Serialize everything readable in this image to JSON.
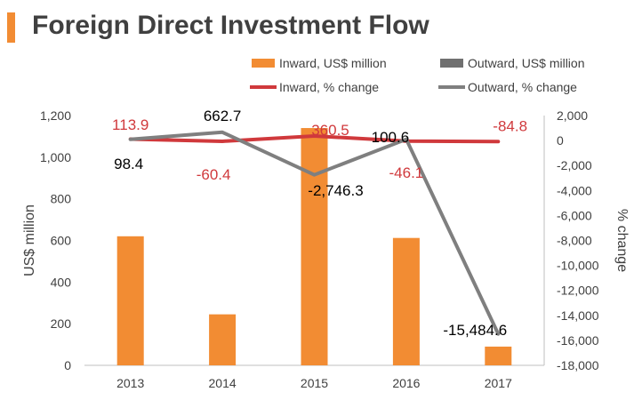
{
  "title": "Foreign Direct Investment Flow",
  "colors": {
    "title_bar": "#F28C33",
    "title_text": "#404040",
    "inward_bar": "#F28C33",
    "outward_bar": "#707070",
    "inward_line": "#D0393C",
    "outward_line": "#7F7F7F",
    "axis_text": "#404040",
    "axis_line": "#BFBFBF"
  },
  "chart_data": {
    "type": "bar",
    "categories": [
      "2013",
      "2014",
      "2015",
      "2016",
      "2017"
    ],
    "series": [
      {
        "name": "Inward, US$ million",
        "type": "bar",
        "axis": "left",
        "values": [
          620,
          245,
          1140,
          612,
          90
        ]
      },
      {
        "name": "Outward, US$ million",
        "type": "bar",
        "axis": "left",
        "values": [
          null,
          null,
          null,
          null,
          null
        ]
      },
      {
        "name": "Inward, % change",
        "type": "line",
        "axis": "right",
        "values": [
          113.9,
          -60.4,
          360.5,
          -46.1,
          -84.8
        ],
        "labels": [
          "113.9",
          "-60.4",
          "360.5",
          "-46.1",
          "-84.8"
        ]
      },
      {
        "name": "Outward, % change",
        "type": "line",
        "axis": "right",
        "values": [
          98.4,
          662.7,
          -2746.3,
          100.6,
          -15484.6
        ],
        "labels": [
          "98.4",
          "662.7",
          "-2,746.3",
          "100.6",
          "-15,484.6"
        ]
      }
    ],
    "y_left": {
      "label": "US$ million",
      "ylim": [
        0,
        1200
      ],
      "ticks": [
        "0",
        "200",
        "400",
        "600",
        "800",
        "1,000",
        "1,200"
      ]
    },
    "y_right": {
      "label": "% change",
      "ylim": [
        -18000,
        2000
      ],
      "ticks": [
        "-18,000",
        "-16,000",
        "-14,000",
        "-12,000",
        "-10,000",
        "-8,000",
        "-6,000",
        "-4,000",
        "-2,000",
        "0",
        "2,000"
      ]
    },
    "legend_position": "top",
    "grid": false
  }
}
